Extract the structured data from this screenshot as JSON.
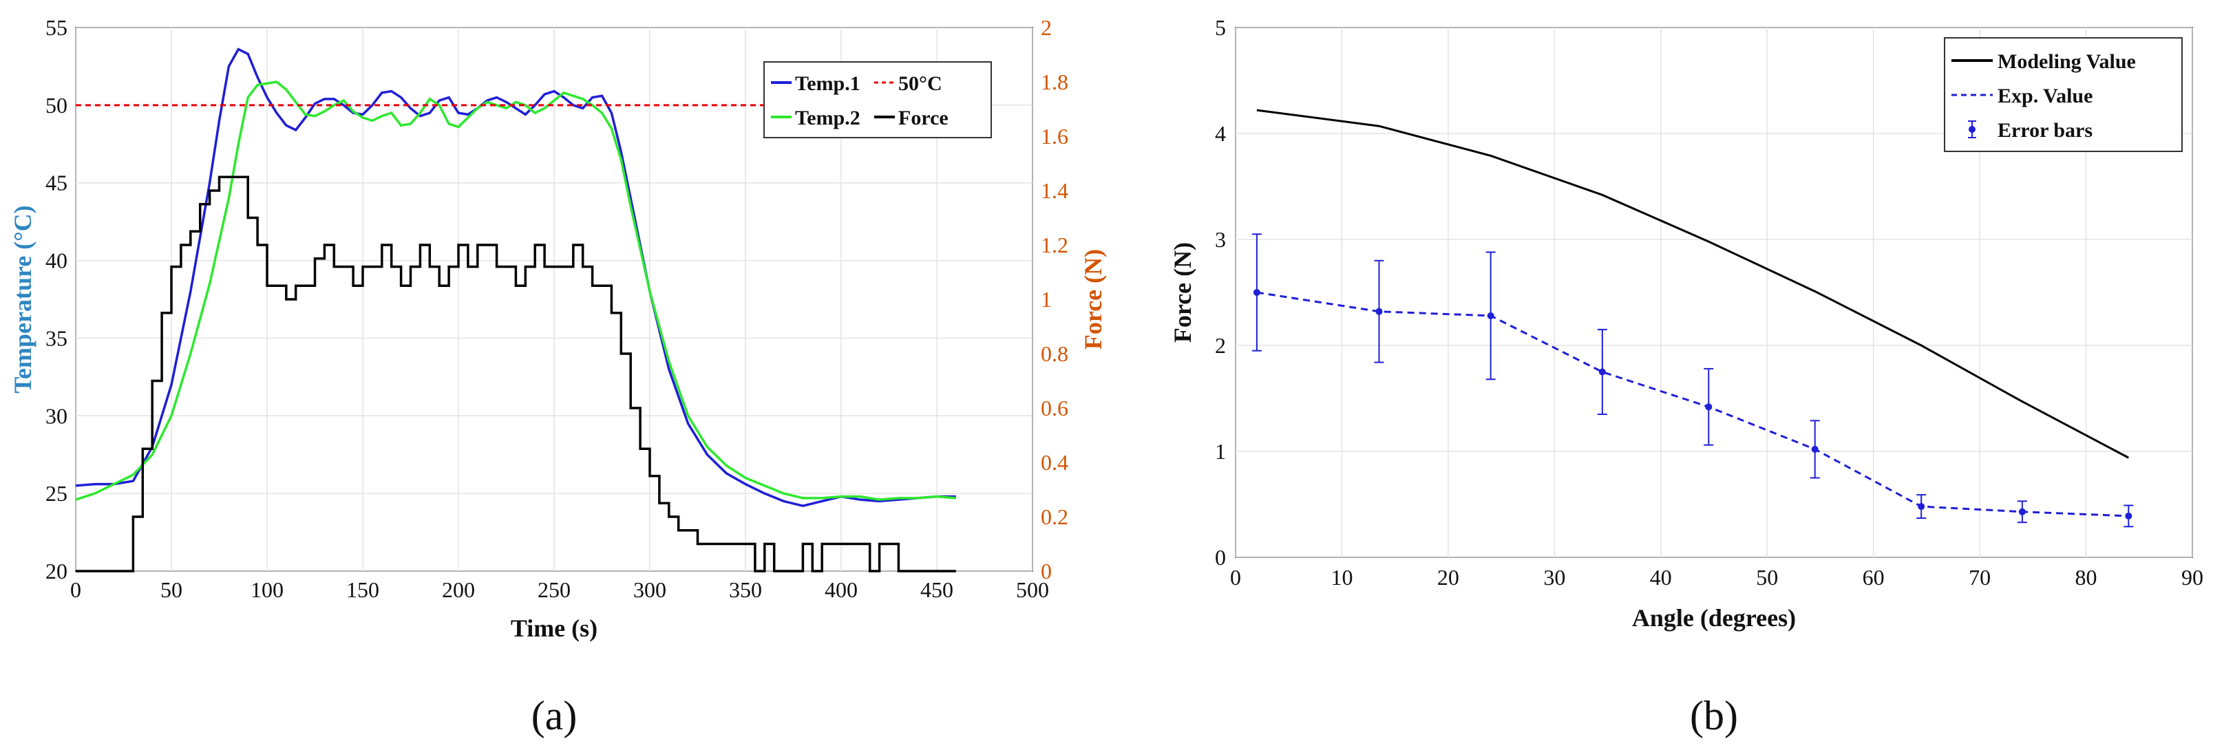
{
  "panels": {
    "a_label": "(a)",
    "b_label": "(b)"
  },
  "chart_data": [
    {
      "id": "a",
      "type": "line",
      "xlabel": "Time (s)",
      "ylabel": "Temperature (°C)",
      "y2label": "Force (N)",
      "xlim": [
        0,
        500
      ],
      "ylim": [
        20,
        55
      ],
      "y2lim": [
        0,
        2
      ],
      "xticks": [
        0,
        50,
        100,
        150,
        200,
        250,
        300,
        350,
        400,
        450,
        500
      ],
      "yticks": [
        20,
        25,
        30,
        35,
        40,
        45,
        50,
        55
      ],
      "y2ticks": [
        0,
        0.2,
        0.4,
        0.6,
        0.8,
        1,
        1.2,
        1.4,
        1.6,
        1.8,
        2
      ],
      "ylabel_color": "#2e86c1",
      "y2label_color": "#d35400",
      "grid": true,
      "legend_position": "top-right",
      "series": [
        {
          "name": "Temp.1",
          "color": "#1f1fd6",
          "axis": "left",
          "points": [
            [
              0,
              25.5
            ],
            [
              10,
              25.6
            ],
            [
              20,
              25.6
            ],
            [
              30,
              25.8
            ],
            [
              40,
              28
            ],
            [
              50,
              32
            ],
            [
              60,
              38
            ],
            [
              70,
              45
            ],
            [
              75,
              49
            ],
            [
              80,
              52.5
            ],
            [
              85,
              53.6
            ],
            [
              90,
              53.3
            ],
            [
              95,
              51.8
            ],
            [
              100,
              50.5
            ],
            [
              105,
              49.5
            ],
            [
              110,
              48.7
            ],
            [
              115,
              48.4
            ],
            [
              120,
              49.2
            ],
            [
              125,
              50.1
            ],
            [
              130,
              50.4
            ],
            [
              135,
              50.4
            ],
            [
              140,
              50.0
            ],
            [
              145,
              49.5
            ],
            [
              150,
              49.4
            ],
            [
              155,
              50.0
            ],
            [
              160,
              50.8
            ],
            [
              165,
              50.9
            ],
            [
              170,
              50.5
            ],
            [
              175,
              49.8
            ],
            [
              180,
              49.3
            ],
            [
              185,
              49.5
            ],
            [
              190,
              50.3
            ],
            [
              195,
              50.5
            ],
            [
              200,
              49.5
            ],
            [
              205,
              49.4
            ],
            [
              210,
              49.8
            ],
            [
              215,
              50.3
            ],
            [
              220,
              50.5
            ],
            [
              225,
              50.2
            ],
            [
              230,
              49.8
            ],
            [
              235,
              49.4
            ],
            [
              240,
              50.0
            ],
            [
              245,
              50.7
            ],
            [
              250,
              50.9
            ],
            [
              255,
              50.5
            ],
            [
              260,
              50.0
            ],
            [
              265,
              49.8
            ],
            [
              270,
              50.5
            ],
            [
              275,
              50.6
            ],
            [
              280,
              49.5
            ],
            [
              285,
              47
            ],
            [
              290,
              44
            ],
            [
              300,
              38
            ],
            [
              310,
              33
            ],
            [
              320,
              29.5
            ],
            [
              330,
              27.5
            ],
            [
              340,
              26.3
            ],
            [
              350,
              25.6
            ],
            [
              360,
              25.0
            ],
            [
              370,
              24.5
            ],
            [
              380,
              24.2
            ],
            [
              390,
              24.5
            ],
            [
              400,
              24.8
            ],
            [
              410,
              24.6
            ],
            [
              420,
              24.5
            ],
            [
              430,
              24.6
            ],
            [
              440,
              24.7
            ],
            [
              450,
              24.8
            ],
            [
              460,
              24.8
            ]
          ]
        },
        {
          "name": "Temp.2",
          "color": "#2ee82e",
          "axis": "left",
          "points": [
            [
              0,
              24.6
            ],
            [
              10,
              25.0
            ],
            [
              20,
              25.6
            ],
            [
              30,
              26.2
            ],
            [
              40,
              27.5
            ],
            [
              50,
              30
            ],
            [
              60,
              34
            ],
            [
              70,
              38.5
            ],
            [
              80,
              44
            ],
            [
              85,
              47.5
            ],
            [
              90,
              50.5
            ],
            [
              95,
              51.3
            ],
            [
              100,
              51.4
            ],
            [
              105,
              51.5
            ],
            [
              110,
              51.0
            ],
            [
              115,
              50.2
            ],
            [
              120,
              49.4
            ],
            [
              125,
              49.3
            ],
            [
              130,
              49.6
            ],
            [
              135,
              50.0
            ],
            [
              140,
              50.3
            ],
            [
              145,
              49.6
            ],
            [
              150,
              49.2
            ],
            [
              155,
              49.0
            ],
            [
              160,
              49.3
            ],
            [
              165,
              49.5
            ],
            [
              170,
              48.7
            ],
            [
              175,
              48.8
            ],
            [
              180,
              49.5
            ],
            [
              185,
              50.4
            ],
            [
              190,
              50.0
            ],
            [
              195,
              48.8
            ],
            [
              200,
              48.6
            ],
            [
              205,
              49.2
            ],
            [
              210,
              49.8
            ],
            [
              215,
              50.2
            ],
            [
              220,
              50.0
            ],
            [
              225,
              49.8
            ],
            [
              230,
              50.2
            ],
            [
              235,
              50.0
            ],
            [
              240,
              49.5
            ],
            [
              245,
              49.8
            ],
            [
              250,
              50.3
            ],
            [
              255,
              50.8
            ],
            [
              260,
              50.6
            ],
            [
              265,
              50.4
            ],
            [
              270,
              50.0
            ],
            [
              275,
              49.5
            ],
            [
              280,
              48.5
            ],
            [
              285,
              46.5
            ],
            [
              290,
              43.5
            ],
            [
              300,
              38
            ],
            [
              310,
              33.5
            ],
            [
              320,
              30
            ],
            [
              330,
              28
            ],
            [
              340,
              26.8
            ],
            [
              350,
              26
            ],
            [
              360,
              25.5
            ],
            [
              370,
              25
            ],
            [
              380,
              24.7
            ],
            [
              390,
              24.7
            ],
            [
              400,
              24.8
            ],
            [
              410,
              24.8
            ],
            [
              420,
              24.6
            ],
            [
              430,
              24.7
            ],
            [
              440,
              24.7
            ],
            [
              450,
              24.8
            ],
            [
              460,
              24.7
            ]
          ]
        },
        {
          "name": "50°C",
          "color": "#e8000b",
          "axis": "left",
          "dashed": true,
          "points": [
            [
              0,
              50
            ],
            [
              460,
              50
            ]
          ]
        },
        {
          "name": "Force",
          "color": "#000000",
          "axis": "right",
          "step": true,
          "points": [
            [
              0,
              0
            ],
            [
              28,
              0
            ],
            [
              30,
              0.2
            ],
            [
              35,
              0.45
            ],
            [
              40,
              0.7
            ],
            [
              45,
              0.95
            ],
            [
              50,
              1.12
            ],
            [
              55,
              1.2
            ],
            [
              60,
              1.25
            ],
            [
              65,
              1.35
            ],
            [
              70,
              1.4
            ],
            [
              75,
              1.45
            ],
            [
              80,
              1.45
            ],
            [
              85,
              1.45
            ],
            [
              90,
              1.3
            ],
            [
              95,
              1.2
            ],
            [
              100,
              1.05
            ],
            [
              105,
              1.05
            ],
            [
              110,
              1.0
            ],
            [
              115,
              1.05
            ],
            [
              120,
              1.05
            ],
            [
              125,
              1.15
            ],
            [
              130,
              1.2
            ],
            [
              135,
              1.12
            ],
            [
              140,
              1.12
            ],
            [
              145,
              1.05
            ],
            [
              150,
              1.12
            ],
            [
              155,
              1.12
            ],
            [
              160,
              1.2
            ],
            [
              165,
              1.12
            ],
            [
              170,
              1.05
            ],
            [
              175,
              1.12
            ],
            [
              180,
              1.2
            ],
            [
              185,
              1.12
            ],
            [
              190,
              1.05
            ],
            [
              195,
              1.12
            ],
            [
              200,
              1.2
            ],
            [
              205,
              1.12
            ],
            [
              210,
              1.2
            ],
            [
              215,
              1.2
            ],
            [
              220,
              1.12
            ],
            [
              225,
              1.12
            ],
            [
              230,
              1.05
            ],
            [
              235,
              1.12
            ],
            [
              240,
              1.2
            ],
            [
              245,
              1.12
            ],
            [
              250,
              1.12
            ],
            [
              255,
              1.12
            ],
            [
              260,
              1.2
            ],
            [
              265,
              1.12
            ],
            [
              270,
              1.05
            ],
            [
              275,
              1.05
            ],
            [
              280,
              0.95
            ],
            [
              285,
              0.8
            ],
            [
              290,
              0.6
            ],
            [
              295,
              0.45
            ],
            [
              300,
              0.35
            ],
            [
              305,
              0.25
            ],
            [
              310,
              0.2
            ],
            [
              315,
              0.15
            ],
            [
              320,
              0.15
            ],
            [
              325,
              0.1
            ],
            [
              330,
              0.1
            ],
            [
              340,
              0.1
            ],
            [
              350,
              0.1
            ],
            [
              355,
              0.0
            ],
            [
              360,
              0.1
            ],
            [
              365,
              0.0
            ],
            [
              370,
              0.0
            ],
            [
              380,
              0.1
            ],
            [
              385,
              0.0
            ],
            [
              390,
              0.1
            ],
            [
              400,
              0.1
            ],
            [
              410,
              0.1
            ],
            [
              415,
              0.0
            ],
            [
              420,
              0.1
            ],
            [
              430,
              0.0
            ],
            [
              440,
              0.0
            ],
            [
              460,
              0.0
            ]
          ]
        }
      ]
    },
    {
      "id": "b",
      "type": "line",
      "xlabel": "Angle (degrees)",
      "ylabel": "Force (N)",
      "xlim": [
        0,
        90
      ],
      "ylim": [
        0,
        5
      ],
      "xticks": [
        0,
        10,
        20,
        30,
        40,
        50,
        60,
        70,
        80,
        90
      ],
      "yticks": [
        0,
        1,
        2,
        3,
        4,
        5
      ],
      "grid": true,
      "legend_position": "top-right",
      "series": [
        {
          "name": "Modeling Value",
          "color": "#000000",
          "x": [
            2,
            13.5,
            24,
            34.5,
            44.5,
            54.5,
            64.5,
            74,
            84
          ],
          "values": [
            4.22,
            4.07,
            3.79,
            3.42,
            2.98,
            2.51,
            2.0,
            1.47,
            0.94
          ]
        },
        {
          "name": "Exp. Value",
          "color": "#1f1fd6",
          "dashed": true,
          "x": [
            2,
            13.5,
            24,
            34.5,
            44.5,
            54.5,
            64.5,
            74,
            84
          ],
          "values": [
            2.5,
            2.32,
            2.28,
            1.75,
            1.42,
            1.02,
            0.48,
            0.43,
            0.39
          ]
        },
        {
          "name": "Error bars",
          "color": "#1f1fd6",
          "type": "errorbar",
          "x": [
            2,
            13.5,
            24,
            34.5,
            44.5,
            54.5,
            64.5,
            74,
            84
          ],
          "values": [
            2.5,
            2.32,
            2.28,
            1.75,
            1.42,
            1.02,
            0.48,
            0.43,
            0.39
          ],
          "errors": [
            0.55,
            0.48,
            0.6,
            0.4,
            0.36,
            0.27,
            0.11,
            0.1,
            0.1
          ]
        }
      ]
    }
  ]
}
